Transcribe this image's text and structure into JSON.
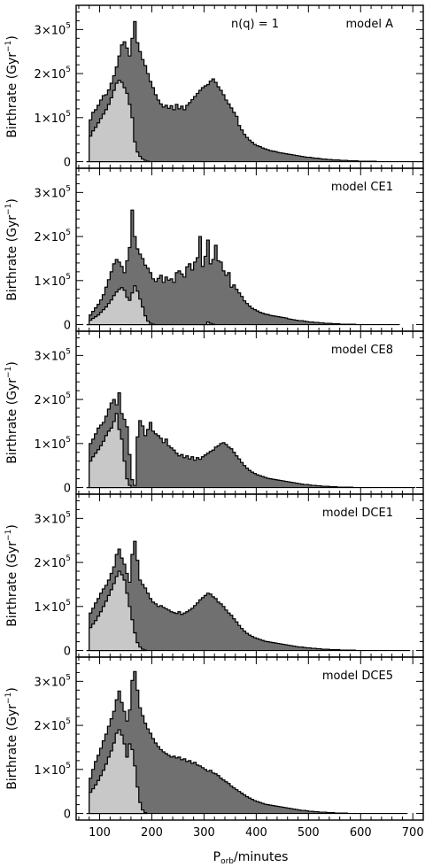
{
  "chart_data": {
    "type": "histogram-stack",
    "shared_xlabel_main": "P",
    "shared_xlabel_sub": "orb",
    "shared_xlabel_rest": "/minutes",
    "x_ticks": [
      "100",
      "200",
      "300",
      "400",
      "500",
      "600",
      "700"
    ],
    "x_tick_values": [
      100,
      200,
      300,
      400,
      500,
      600,
      700
    ],
    "xlim": [
      55,
      720
    ],
    "ylim": [
      -15000,
      355000
    ],
    "ylabel_main": "Birthrate (Gyr",
    "ylabel_sup": "−1",
    "ylabel_end": ")",
    "y_ticks": [
      {
        "value": 0,
        "mant": "0",
        "exp": ""
      },
      {
        "value": 100000,
        "mant": "1×10",
        "exp": "5"
      },
      {
        "value": 200000,
        "mant": "2×10",
        "exp": "5"
      },
      {
        "value": 300000,
        "mant": "3×10",
        "exp": "5"
      }
    ],
    "bin_start": 75,
    "bin_width": 5,
    "colors": {
      "total": "#707070",
      "subset": "#c8c8c8",
      "edge": "#000000"
    },
    "panels": [
      {
        "label": "model A",
        "annotation": "n(q) = 1",
        "total": [
          0,
          95000,
          112000,
          118000,
          128000,
          140000,
          150000,
          152000,
          163000,
          178000,
          195000,
          215000,
          240000,
          265000,
          272000,
          258000,
          240000,
          280000,
          318000,
          270000,
          250000,
          232000,
          218000,
          200000,
          182000,
          168000,
          152000,
          140000,
          131000,
          124000,
          128000,
          121000,
          127000,
          118000,
          130000,
          120000,
          126000,
          118000,
          128000,
          134000,
          141000,
          148000,
          155000,
          162000,
          168000,
          172000,
          175000,
          183000,
          188000,
          180000,
          170000,
          162000,
          152000,
          140000,
          131000,
          122000,
          112000,
          103000,
          82000,
          72000,
          62000,
          55000,
          49000,
          44000,
          39000,
          36000,
          34000,
          31000,
          29000,
          27000,
          25000,
          24000,
          23000,
          21000,
          20000,
          19000,
          18000,
          17000,
          16000,
          15000,
          14000,
          13000,
          12000,
          11000,
          10000,
          10000,
          9000,
          8000,
          8000,
          7000,
          6000,
          6000,
          5000,
          5000,
          4000,
          4000,
          4000,
          3000,
          3000,
          3000,
          2000,
          2000,
          2000,
          2000,
          1000,
          1000,
          1000,
          1000,
          1000,
          1000,
          1000,
          0,
          0,
          0,
          0,
          0,
          0,
          0,
          0,
          0,
          0,
          0,
          0,
          0,
          0,
          0,
          0,
          0,
          0
        ],
        "subset": [
          0,
          58000,
          70000,
          78000,
          88000,
          98000,
          108000,
          118000,
          130000,
          145000,
          162000,
          178000,
          185000,
          180000,
          168000,
          155000,
          130000,
          100000,
          45000,
          22000,
          12000,
          6000,
          3000,
          1000
        ]
      },
      {
        "label": "model CE1",
        "annotation": "",
        "total": [
          0,
          22000,
          30000,
          38000,
          46000,
          56000,
          68000,
          85000,
          102000,
          120000,
          138000,
          148000,
          142000,
          132000,
          118000,
          145000,
          175000,
          260000,
          200000,
          172000,
          160000,
          150000,
          135000,
          128000,
          118000,
          104000,
          98000,
          105000,
          112000,
          96000,
          108000,
          101000,
          104000,
          96000,
          118000,
          122000,
          115000,
          108000,
          131000,
          138000,
          124000,
          142000,
          152000,
          200000,
          132000,
          155000,
          192000,
          138000,
          148000,
          180000,
          145000,
          142000,
          122000,
          112000,
          118000,
          85000,
          90000,
          80000,
          72000,
          64000,
          54000,
          48000,
          42000,
          37000,
          34000,
          31000,
          28000,
          26000,
          24000,
          23000,
          21000,
          20000,
          19000,
          18000,
          17000,
          16000,
          15000,
          13000,
          12000,
          11000,
          10000,
          9000,
          9000,
          8000,
          7000,
          6000,
          6000,
          5000,
          5000,
          4000,
          4000,
          3000,
          3000,
          3000,
          2000,
          2000,
          2000,
          1000,
          1000,
          1000,
          1000,
          1000,
          1000,
          0,
          0,
          0,
          0,
          0,
          0,
          0,
          0,
          0,
          0,
          0,
          0,
          0,
          0,
          0,
          0,
          0
        ],
        "subset": [
          0,
          10000,
          14000,
          18000,
          22000,
          28000,
          34000,
          40000,
          48000,
          56000,
          66000,
          74000,
          80000,
          84000,
          78000,
          62000,
          55000,
          72000,
          88000,
          76000,
          58000,
          40000,
          20000,
          8000,
          3000,
          1000,
          0,
          0,
          0,
          0,
          0,
          0,
          0,
          0,
          0,
          0,
          0,
          0,
          0,
          0,
          0,
          0,
          0,
          0,
          0,
          0,
          6000,
          3000,
          1000
        ]
      },
      {
        "label": "model CE8",
        "annotation": "",
        "total": [
          0,
          100000,
          110000,
          122000,
          135000,
          142000,
          148000,
          162000,
          178000,
          192000,
          200000,
          188000,
          215000,
          168000,
          155000,
          138000,
          75000,
          18000,
          5000,
          115000,
          152000,
          140000,
          118000,
          132000,
          148000,
          128000,
          122000,
          118000,
          112000,
          102000,
          110000,
          95000,
          90000,
          85000,
          78000,
          72000,
          75000,
          68000,
          72000,
          65000,
          70000,
          62000,
          68000,
          64000,
          70000,
          74000,
          78000,
          82000,
          85000,
          92000,
          95000,
          100000,
          102000,
          98000,
          92000,
          88000,
          80000,
          72000,
          65000,
          57000,
          50000,
          44000,
          39000,
          35000,
          32000,
          29000,
          27000,
          25000,
          23000,
          21000,
          20000,
          19000,
          18000,
          17000,
          16000,
          15000,
          14000,
          13000,
          12000,
          11000,
          10000,
          9000,
          8000,
          7000,
          7000,
          6000,
          5000,
          5000,
          4000,
          4000,
          3000,
          3000,
          3000,
          2000,
          2000,
          2000,
          1000,
          1000,
          1000,
          1000,
          1000,
          1000,
          0,
          0,
          0,
          0,
          0,
          0,
          0,
          0,
          0,
          0,
          0,
          0,
          0,
          0,
          0,
          0,
          0,
          0,
          0,
          0,
          0,
          0,
          0,
          0
        ],
        "subset": [
          0,
          60000,
          70000,
          78000,
          86000,
          95000,
          105000,
          118000,
          128000,
          135000,
          150000,
          168000,
          132000,
          110000,
          60000,
          20000,
          5000
        ]
      },
      {
        "label": "model DCE1",
        "annotation": "",
        "total": [
          0,
          85000,
          96000,
          108000,
          118000,
          130000,
          140000,
          148000,
          160000,
          175000,
          190000,
          218000,
          230000,
          210000,
          196000,
          175000,
          155000,
          218000,
          248000,
          205000,
          160000,
          150000,
          142000,
          130000,
          118000,
          110000,
          106000,
          100000,
          102000,
          98000,
          95000,
          92000,
          88000,
          86000,
          84000,
          88000,
          82000,
          85000,
          88000,
          92000,
          96000,
          102000,
          108000,
          115000,
          120000,
          125000,
          130000,
          128000,
          122000,
          118000,
          110000,
          106000,
          100000,
          92000,
          85000,
          80000,
          72000,
          65000,
          57000,
          50000,
          44000,
          39000,
          35000,
          32000,
          29000,
          27000,
          25000,
          23000,
          21000,
          20000,
          19000,
          18000,
          17000,
          16000,
          15000,
          14000,
          13000,
          12000,
          11000,
          10000,
          9000,
          8000,
          8000,
          7000,
          6000,
          6000,
          5000,
          5000,
          4000,
          4000,
          3000,
          3000,
          3000,
          2000,
          2000,
          2000,
          2000,
          1000,
          1000,
          1000,
          1000,
          1000,
          1000,
          0,
          0,
          0,
          0,
          0,
          0,
          0,
          0,
          0,
          0,
          0,
          0,
          0,
          0,
          0,
          0,
          0,
          0,
          0,
          0,
          0
        ],
        "subset": [
          0,
          52000,
          60000,
          68000,
          78000,
          88000,
          100000,
          112000,
          125000,
          138000,
          152000,
          168000,
          180000,
          172000,
          160000,
          130000,
          100000,
          70000,
          40000,
          18000,
          8000,
          3000,
          1000
        ]
      },
      {
        "label": "model DCE5",
        "annotation": "",
        "total": [
          0,
          80000,
          100000,
          118000,
          132000,
          148000,
          165000,
          180000,
          198000,
          215000,
          232000,
          258000,
          278000,
          252000,
          232000,
          210000,
          235000,
          302000,
          322000,
          280000,
          240000,
          222000,
          205000,
          192000,
          182000,
          170000,
          160000,
          152000,
          145000,
          140000,
          136000,
          132000,
          128000,
          130000,
          126000,
          128000,
          122000,
          124000,
          118000,
          120000,
          114000,
          116000,
          110000,
          108000,
          104000,
          100000,
          96000,
          98000,
          92000,
          90000,
          86000,
          80000,
          76000,
          72000,
          68000,
          62000,
          58000,
          54000,
          50000,
          46000,
          42000,
          38000,
          35000,
          32000,
          29000,
          27000,
          25000,
          23000,
          21000,
          20000,
          19000,
          18000,
          17000,
          16000,
          15000,
          14000,
          13000,
          12000,
          11000,
          10000,
          9000,
          8000,
          7000,
          7000,
          6000,
          5000,
          5000,
          4000,
          4000,
          3000,
          3000,
          3000,
          2000,
          2000,
          2000,
          1000,
          1000,
          1000,
          1000,
          1000,
          0,
          0,
          0,
          0,
          0,
          0,
          0,
          0,
          0,
          0,
          0,
          0,
          0,
          0,
          0,
          0,
          0,
          0,
          0,
          0,
          0,
          0,
          0
        ],
        "subset": [
          0,
          48000,
          56000,
          65000,
          75000,
          86000,
          98000,
          112000,
          128000,
          142000,
          160000,
          182000,
          190000,
          178000,
          158000,
          128000,
          158000,
          145000,
          108000,
          60000,
          25000,
          8000,
          2000
        ]
      }
    ]
  }
}
